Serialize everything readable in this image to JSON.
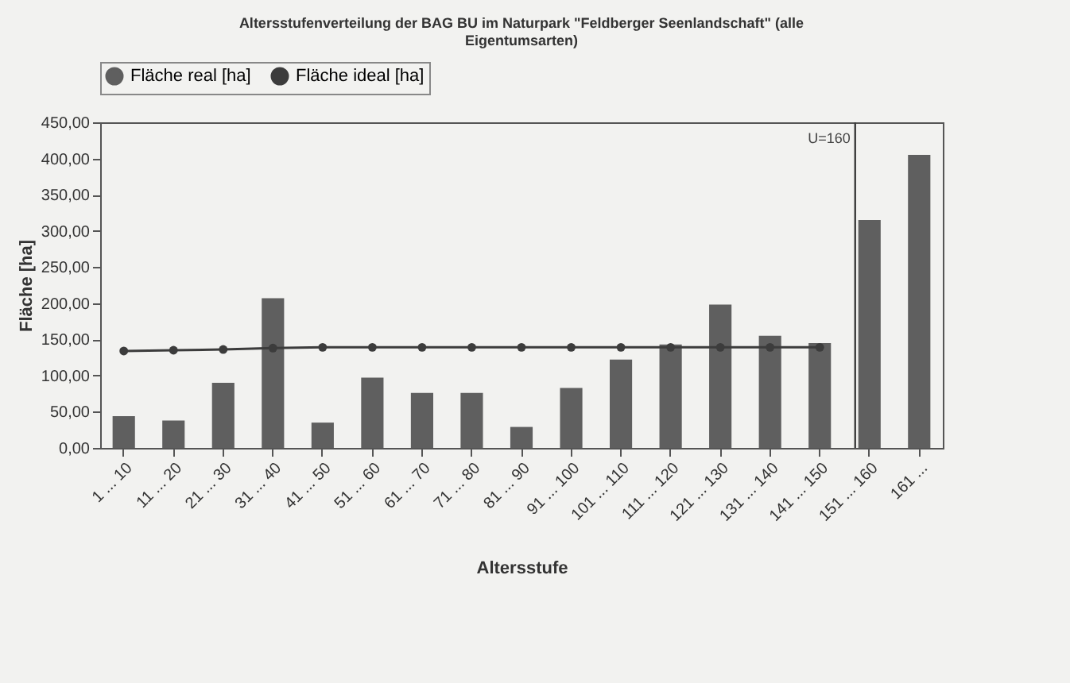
{
  "chart_data": {
    "type": "bar",
    "title": [
      "Altersstufenverteilung der BAG BU im Naturpark \"Feldberger Seenlandschaft\" (alle",
      "Eigentumsarten)"
    ],
    "xlabel": "Altersstufe",
    "ylabel": "Fläche [ha]",
    "categories": [
      "1 ... 10",
      "11 ... 20",
      "21 ... 30",
      "31 ... 40",
      "41 ... 50",
      "51 ... 60",
      "61 ... 70",
      "71 ... 80",
      "81 ... 90",
      "91 ... 100",
      "101 ... 110",
      "111 ... 120",
      "121 ... 130",
      "131 ... 140",
      "141 ... 150",
      "151 ... 160",
      "161 ..."
    ],
    "series": [
      {
        "name": "Fläche real [ha]",
        "color": "#5f5f5f",
        "values": [
          44,
          38,
          90,
          207,
          35,
          97,
          76,
          76,
          29,
          83,
          122,
          143,
          198,
          155,
          145,
          315,
          405
        ]
      },
      {
        "name": "Fläche ideal [ha]",
        "type": "line",
        "color": "#3c3c3c",
        "values": [
          134,
          135,
          136,
          138,
          139,
          139,
          139,
          139,
          139,
          139,
          139,
          139,
          139,
          139,
          139,
          null,
          null
        ]
      }
    ],
    "ylim": [
      0,
      450
    ],
    "yticks": [
      {
        "value": 0,
        "label": "0,00"
      },
      {
        "value": 50,
        "label": "50,00"
      },
      {
        "value": 100,
        "label": "100,00"
      },
      {
        "value": 150,
        "label": "150,00"
      },
      {
        "value": 200,
        "label": "200,00"
      },
      {
        "value": 250,
        "label": "250,00"
      },
      {
        "value": 300,
        "label": "300,00"
      },
      {
        "value": 350,
        "label": "350,00"
      },
      {
        "value": 400,
        "label": "400,00"
      },
      {
        "value": 450,
        "label": "450,00"
      }
    ],
    "ref_lines": [
      {
        "axis": "x",
        "value": "151 ... 160",
        "label": "U=160",
        "color": "#3c3c3c"
      }
    ],
    "grid": false,
    "legend": "top",
    "marker": "circle"
  }
}
